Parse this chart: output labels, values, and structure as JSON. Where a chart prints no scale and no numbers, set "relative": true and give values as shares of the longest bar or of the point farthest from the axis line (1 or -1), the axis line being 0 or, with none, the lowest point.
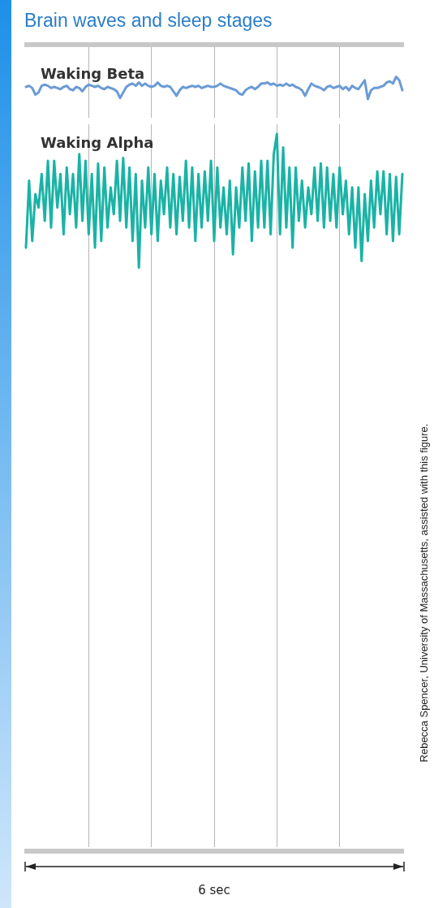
{
  "chart_data": [
    {
      "type": "line",
      "title": "Brain waves and sleep stages",
      "subtitle": "Waking Beta",
      "relative": true,
      "grid": "x",
      "marker": "none",
      "line_style": "solid",
      "categories": [
        null,
        null,
        null,
        null,
        null,
        null,
        null,
        null,
        null,
        null,
        null,
        null,
        null,
        null,
        null,
        null,
        null,
        null,
        null,
        null,
        null,
        null,
        null,
        null,
        null,
        null,
        null,
        null,
        null,
        null,
        null,
        null,
        null,
        null,
        null,
        null,
        null,
        null,
        null,
        null,
        null,
        null,
        null,
        null,
        null,
        null,
        null,
        null,
        null,
        null,
        null,
        null,
        null,
        null,
        null,
        null,
        null,
        null,
        null,
        null,
        null,
        null,
        null,
        null,
        null,
        null,
        null,
        null,
        null,
        null,
        null,
        null,
        null,
        null,
        null,
        null,
        null,
        null,
        null,
        null,
        null,
        null,
        null,
        null,
        null,
        null,
        null,
        null,
        null,
        null,
        null,
        null,
        null,
        null,
        null,
        null,
        null,
        null,
        null,
        null,
        null,
        null,
        null,
        null,
        null,
        null,
        null,
        null,
        null,
        null,
        null,
        null,
        null,
        null,
        null,
        null,
        null,
        null,
        null,
        null,
        null
      ],
      "series": [
        {
          "color": "#6a9bd6",
          "values": [
            0.55,
            0.6,
            0.5,
            0.2,
            0.3,
            0.6,
            0.65,
            0.6,
            0.5,
            0.55,
            0.5,
            0.45,
            0.55,
            0.6,
            0.45,
            0.4,
            0.55,
            0.5,
            0.35,
            0.55,
            0.65,
            0.6,
            0.55,
            0.6,
            0.5,
            0.45,
            0.55,
            0.5,
            0.45,
            0.35,
            0.05,
            0.3,
            0.55,
            0.65,
            0.7,
            0.6,
            0.75,
            0.6,
            0.7,
            0.6,
            0.55,
            0.6,
            0.75,
            0.6,
            0.55,
            0.6,
            0.55,
            0.35,
            0.15,
            0.4,
            0.55,
            0.5,
            0.55,
            0.6,
            0.55,
            0.6,
            0.5,
            0.55,
            0.6,
            0.55,
            0.55,
            0.6,
            0.7,
            0.6,
            0.55,
            0.5,
            0.45,
            0.4,
            0.25,
            0.2,
            0.4,
            0.5,
            0.55,
            0.45,
            0.55,
            0.7,
            0.7,
            0.75,
            0.65,
            0.7,
            0.6,
            0.65,
            0.6,
            0.7,
            0.6,
            0.65,
            0.55,
            0.5,
            0.4,
            0.15,
            0.45,
            0.7,
            0.6,
            0.55,
            0.5,
            0.4,
            0.55,
            0.6,
            0.5,
            0.55,
            0.6,
            0.45,
            0.55,
            0.4,
            0.6,
            0.5,
            0.45,
            0.65,
            0.85,
            0,
            0.4,
            0.5,
            0.5,
            0.55,
            0.6,
            0.75,
            0.8,
            0.7,
            1,
            0.85,
            0.4
          ]
        }
      ]
    },
    {
      "type": "line",
      "title": "Waking Alpha",
      "xlabel": "6 sec",
      "relative": true,
      "grid": "x",
      "marker": "none",
      "line_style": "solid",
      "annotations": [
        "Rebecca Spencer, University of Massachusetts, assisted with this figure."
      ],
      "categories": [
        null,
        null,
        null,
        null,
        null,
        null,
        null,
        null,
        null,
        null,
        null,
        null,
        null,
        null,
        null,
        null,
        null,
        null,
        null,
        null,
        null,
        null,
        null,
        null,
        null,
        null,
        null,
        null,
        null,
        null,
        null,
        null,
        null,
        null,
        null,
        null,
        null,
        null,
        null,
        null,
        null,
        null,
        null,
        null,
        null,
        null,
        null,
        null,
        null,
        null,
        null,
        null,
        null,
        null,
        null,
        null,
        null,
        null,
        null,
        null,
        null,
        null,
        null,
        null,
        null,
        null,
        null,
        null,
        null,
        null,
        null,
        null,
        null,
        null,
        null,
        null,
        null,
        null,
        null,
        null,
        null,
        null,
        null,
        null,
        null,
        null,
        null,
        null,
        null,
        null,
        null,
        null,
        null,
        null,
        null,
        null,
        null,
        null,
        null,
        null,
        null,
        null,
        null,
        null,
        null,
        null,
        null,
        null,
        null,
        null,
        null,
        null,
        null,
        null,
        null,
        null,
        null,
        null,
        null,
        null,
        null
      ],
      "series": [
        {
          "color": "#1ab3a6",
          "values": [
            0.15,
            0.65,
            0.2,
            0.55,
            0.45,
            0.7,
            0.35,
            0.8,
            0.3,
            0.8,
            0.45,
            0.7,
            0.25,
            0.75,
            0.4,
            0.7,
            0.3,
            0.85,
            0.35,
            0.8,
            0.25,
            0.7,
            0.15,
            0.78,
            0.2,
            0.75,
            0.3,
            0.6,
            0.4,
            0.8,
            0.35,
            0.82,
            0.3,
            0.75,
            0.2,
            0.7,
            0,
            0.65,
            0.3,
            0.75,
            0.25,
            0.7,
            0.2,
            0.65,
            0.4,
            0.75,
            0.3,
            0.7,
            0.25,
            0.68,
            0.35,
            0.8,
            0.3,
            0.75,
            0.2,
            0.7,
            0.3,
            0.72,
            0.35,
            0.8,
            0.2,
            0.75,
            0.3,
            0.6,
            0.25,
            0.65,
            0.1,
            0.6,
            0.3,
            0.75,
            0.35,
            0.78,
            0.2,
            0.72,
            0.3,
            0.8,
            0.3,
            0.8,
            0.25,
            0.85,
            1,
            0.25,
            0.9,
            0.3,
            0.75,
            0.15,
            0.75,
            0.35,
            0.65,
            0.3,
            0.6,
            0.4,
            0.75,
            0.35,
            0.78,
            0.3,
            0.75,
            0.35,
            0.7,
            0.3,
            0.75,
            0.4,
            0.65,
            0.25,
            0.6,
            0.15,
            0.6,
            0.05,
            0.55,
            0.2,
            0.65,
            0.3,
            0.72,
            0.4,
            0.72,
            0.25,
            0.7,
            0.2,
            0.68,
            0.25,
            0.7
          ]
        }
      ]
    }
  ]
}
